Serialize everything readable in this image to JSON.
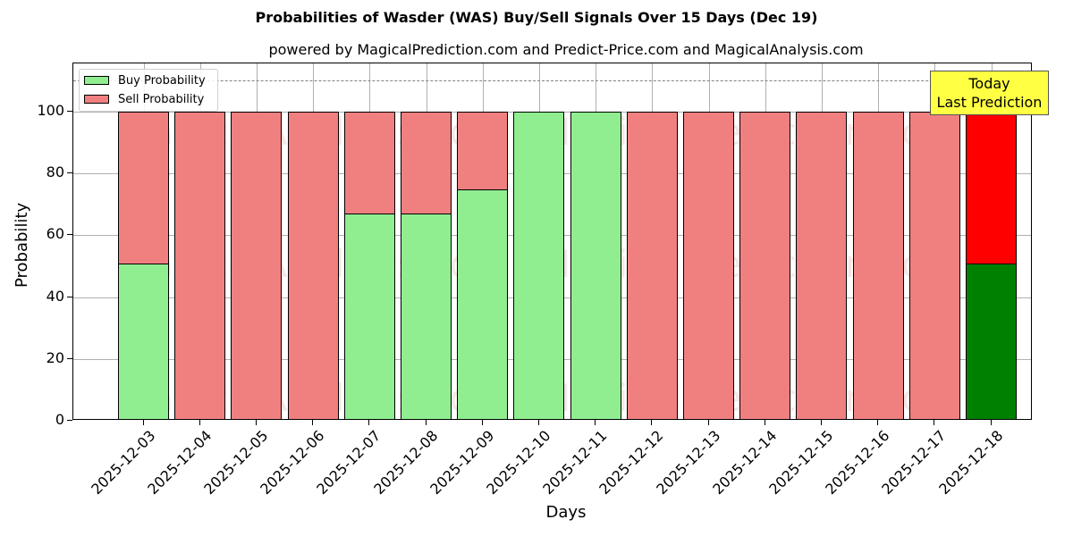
{
  "chart_data": {
    "type": "bar",
    "stacked": true,
    "title": "Probabilities of Wasder (WAS) Buy/Sell Signals Over 15 Days (Dec 19)",
    "subtitle": "powered by MagicalPrediction.com and Predict-Price.com and MagicalAnalysis.com",
    "xlabel": "Days",
    "ylabel": "Probability",
    "ylim": [
      0,
      115
    ],
    "yticks": [
      0,
      20,
      40,
      60,
      80,
      100
    ],
    "grid": true,
    "legend_position": "upper left",
    "reference_line": {
      "y": 110,
      "style": "dashed",
      "color": "#808080"
    },
    "categories": [
      "2025-12-03",
      "2025-12-04",
      "2025-12-05",
      "2025-12-06",
      "2025-12-07",
      "2025-12-08",
      "2025-12-09",
      "2025-12-10",
      "2025-12-11",
      "2025-12-12",
      "2025-12-13",
      "2025-12-14",
      "2025-12-15",
      "2025-12-16",
      "2025-12-17",
      "2025-12-18"
    ],
    "series": [
      {
        "name": "Buy Probability",
        "color": "#90ee90",
        "values": [
          51,
          0,
          0,
          0,
          67,
          67,
          75,
          100,
          100,
          0,
          0,
          0,
          0,
          0,
          0,
          51
        ]
      },
      {
        "name": "Sell Probability",
        "color": "#f08080",
        "values": [
          49,
          100,
          100,
          100,
          33,
          33,
          25,
          0,
          0,
          100,
          100,
          100,
          100,
          100,
          100,
          49
        ]
      }
    ],
    "highlight": {
      "index": 15,
      "buy_color": "#008000",
      "sell_color": "#ff0000"
    },
    "annotation": {
      "line1": "Today",
      "line2": "Last Prediction",
      "background": "#ffff44"
    },
    "watermarks": [
      "MagicalAnalysis.com",
      "MagicalPrediction.com"
    ]
  }
}
